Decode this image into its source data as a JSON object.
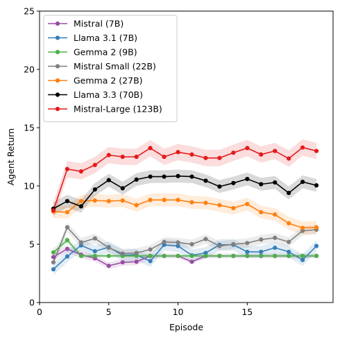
{
  "chart_data": {
    "type": "line",
    "title": "",
    "xlabel": "Episode",
    "ylabel": "Agent Return",
    "xlim": [
      0,
      21.2
    ],
    "ylim": [
      0,
      25
    ],
    "xticks": [
      0,
      5,
      10,
      15
    ],
    "yticks": [
      0,
      5,
      10,
      15,
      20,
      25
    ],
    "grid": false,
    "legend_position": "top-left",
    "x": [
      1,
      2,
      3,
      4,
      5,
      6,
      7,
      8,
      9,
      10,
      11,
      12,
      13,
      14,
      15,
      16,
      17,
      18,
      19,
      20
    ],
    "series": [
      {
        "name": "Mistral (7B)",
        "color": "#984ea3",
        "values": [
          3.9,
          4.6,
          4.1,
          3.8,
          3.15,
          3.45,
          3.5,
          4.0,
          4.0,
          4.0,
          3.5,
          4.0,
          4.0,
          4.0,
          4.0,
          4.0,
          4.0,
          4.0,
          4.0,
          4.0
        ],
        "spread": [
          0.3,
          0.3,
          0.3,
          0.3,
          0.3,
          0.3,
          0.3,
          0.25,
          0.2,
          0.2,
          0.2,
          0.2,
          0.2,
          0.2,
          0.2,
          0.2,
          0.2,
          0.2,
          0.2,
          0.2
        ]
      },
      {
        "name": "Llama 3.1 (7B)",
        "color": "#377eb8",
        "values": [
          2.85,
          3.95,
          4.9,
          4.4,
          4.75,
          4.05,
          4.1,
          3.55,
          4.95,
          4.85,
          4.05,
          4.25,
          4.95,
          4.95,
          4.35,
          4.35,
          4.7,
          4.35,
          3.65,
          4.85
        ],
        "spread": [
          0.5,
          0.5,
          0.5,
          0.5,
          0.5,
          0.5,
          0.5,
          0.5,
          0.5,
          0.5,
          0.5,
          0.5,
          0.5,
          0.5,
          0.5,
          0.5,
          0.5,
          0.5,
          0.5,
          0.5
        ]
      },
      {
        "name": "Gemma 2 (9B)",
        "color": "#4daf4a",
        "values": [
          4.3,
          5.35,
          4.0,
          4.0,
          4.0,
          4.0,
          4.0,
          4.0,
          4.0,
          4.0,
          4.0,
          4.0,
          4.0,
          4.0,
          4.0,
          4.0,
          4.0,
          4.0,
          4.0,
          4.0
        ],
        "spread": [
          0.35,
          0.3,
          0.2,
          0.15,
          0.15,
          0.15,
          0.15,
          0.15,
          0.15,
          0.15,
          0.15,
          0.15,
          0.15,
          0.15,
          0.15,
          0.15,
          0.15,
          0.15,
          0.15,
          0.15
        ]
      },
      {
        "name": "Mistral Small (22B)",
        "color": "#7f7f7f",
        "values": [
          3.45,
          6.45,
          5.15,
          5.5,
          4.7,
          4.2,
          4.25,
          4.55,
          5.2,
          5.15,
          5.0,
          5.45,
          4.85,
          5.0,
          5.1,
          5.4,
          5.55,
          5.2,
          6.15,
          6.25
        ],
        "spread": [
          0.4,
          0.4,
          0.4,
          0.4,
          0.4,
          0.4,
          0.4,
          0.4,
          0.4,
          0.4,
          0.4,
          0.4,
          0.4,
          0.4,
          0.4,
          0.4,
          0.4,
          0.4,
          0.4,
          0.4
        ]
      },
      {
        "name": "Gemma 2 (27B)",
        "color": "#ff7f0e",
        "values": [
          7.8,
          7.75,
          8.7,
          8.75,
          8.7,
          8.75,
          8.35,
          8.8,
          8.8,
          8.8,
          8.6,
          8.55,
          8.35,
          8.1,
          8.45,
          7.75,
          7.55,
          6.8,
          6.4,
          6.45
        ],
        "spread": [
          0.55,
          0.55,
          0.55,
          0.55,
          0.55,
          0.55,
          0.55,
          0.55,
          0.55,
          0.55,
          0.55,
          0.55,
          0.55,
          0.55,
          0.55,
          0.55,
          0.55,
          0.55,
          0.55,
          0.55
        ]
      },
      {
        "name": "Llama 3.3 (70B)",
        "color": "#000000",
        "values": [
          8.05,
          8.7,
          8.25,
          9.7,
          10.5,
          9.8,
          10.55,
          10.8,
          10.8,
          10.85,
          10.8,
          10.45,
          9.95,
          10.25,
          10.6,
          10.15,
          10.3,
          9.4,
          10.35,
          10.05
        ],
        "spread": [
          0.55,
          0.55,
          0.55,
          0.55,
          0.55,
          0.55,
          0.55,
          0.55,
          0.55,
          0.55,
          0.55,
          0.55,
          0.55,
          0.55,
          0.55,
          0.55,
          0.55,
          0.55,
          0.55,
          0.55
        ]
      },
      {
        "name": "Mistral-Large (123B)",
        "color": "#e41a1c",
        "values": [
          7.9,
          11.45,
          11.25,
          11.8,
          12.65,
          12.5,
          12.5,
          13.25,
          12.5,
          12.9,
          12.7,
          12.4,
          12.4,
          12.85,
          13.25,
          12.7,
          13.0,
          12.35,
          13.3,
          13.0
        ],
        "spread": [
          0.7,
          0.7,
          0.7,
          0.7,
          0.7,
          0.7,
          0.7,
          0.7,
          0.7,
          0.7,
          0.7,
          0.7,
          0.7,
          0.7,
          0.7,
          0.7,
          0.7,
          0.7,
          0.7,
          0.7
        ]
      }
    ]
  }
}
